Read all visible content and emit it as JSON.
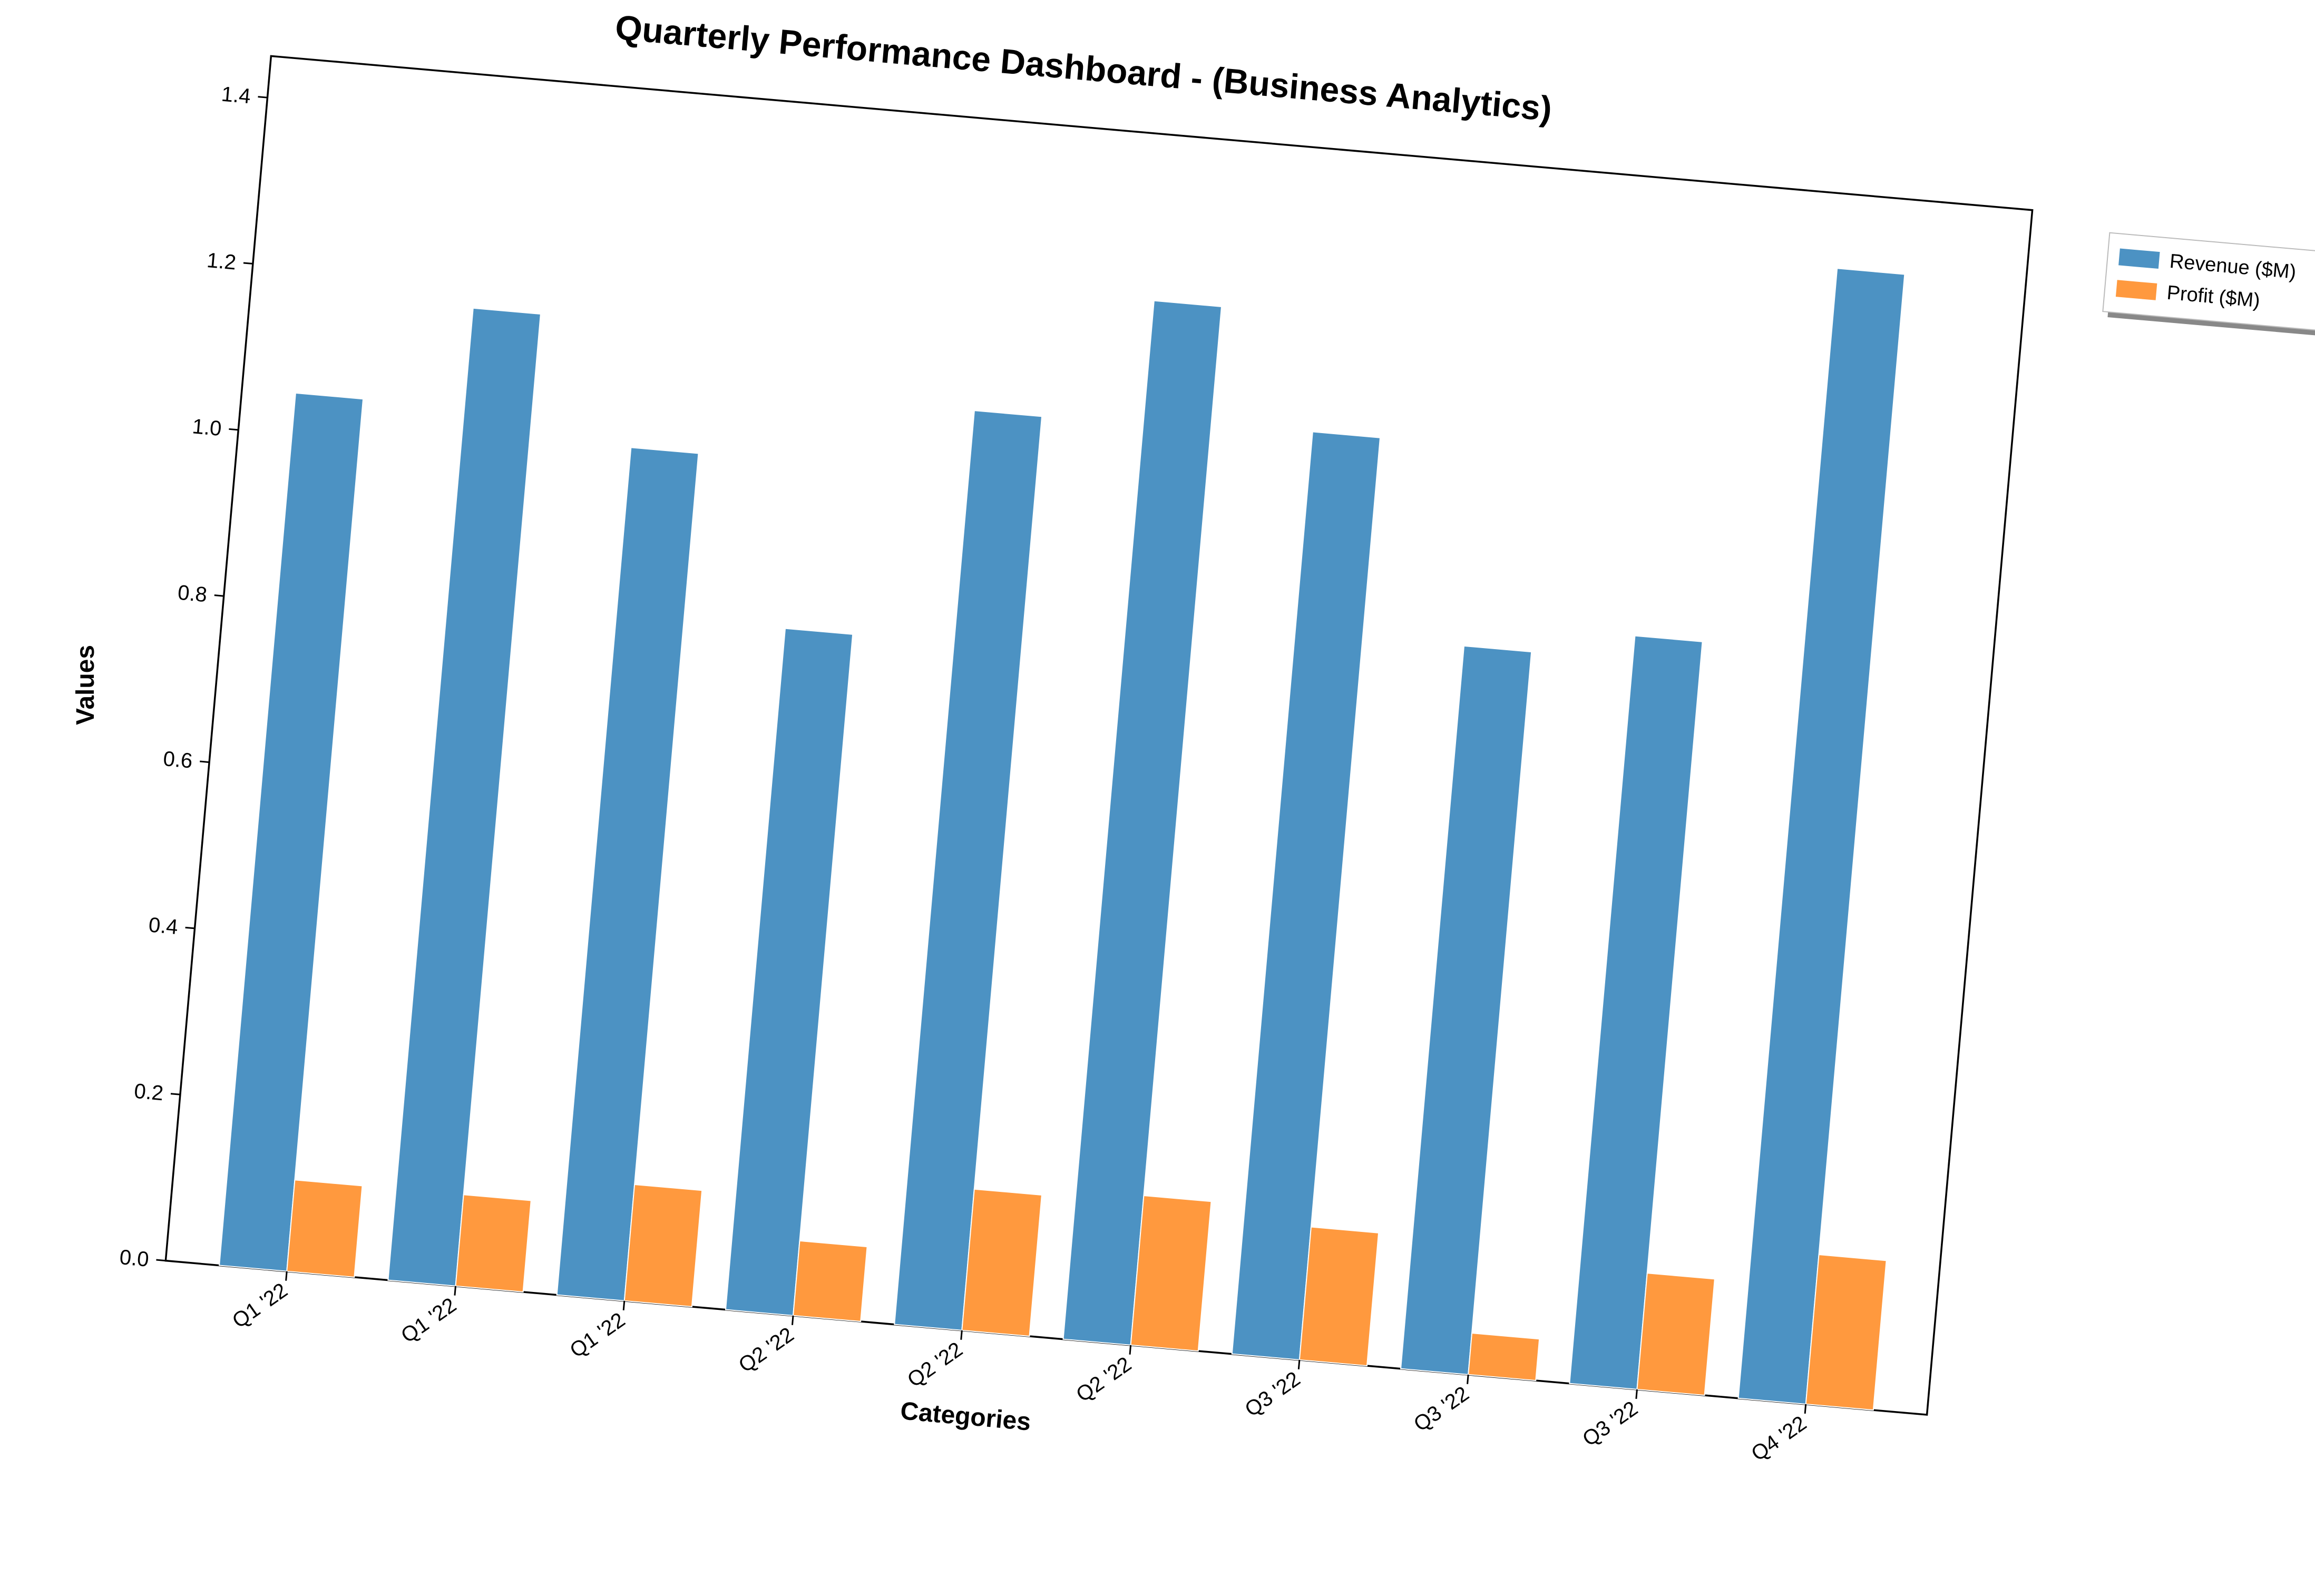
{
  "chart_data": {
    "type": "bar",
    "title": "Quarterly Performance Dashboard - (Business Analytics)",
    "xlabel": "Categories",
    "ylabel": "Values",
    "categories": [
      "Q1 '22",
      "Q1 '22",
      "Q1 '22",
      "Q2 '22",
      "Q2 '22",
      "Q2 '22",
      "Q3 '22",
      "Q3 '22",
      "Q3 '22",
      "Q4 '22"
    ],
    "series": [
      {
        "name": "Revenue ($M)",
        "color": "#4c92c3",
        "values": [
          1.05,
          1.17,
          1.02,
          0.82,
          1.1,
          1.25,
          1.11,
          0.87,
          0.9,
          1.36
        ]
      },
      {
        "name": "Profit ($M)",
        "color": "#ff993e",
        "values": [
          0.11,
          0.11,
          0.14,
          0.09,
          0.17,
          0.18,
          0.16,
          0.05,
          0.14,
          0.18
        ]
      }
    ],
    "ylim": [
      0,
      1.45
    ],
    "yticks": [
      0.0,
      0.2,
      0.4,
      0.6,
      0.8,
      1.0,
      1.2,
      1.4
    ],
    "ytick_labels": [
      "0.0",
      "0.2",
      "0.4",
      "0.6",
      "0.8",
      "1.0",
      "1.2",
      "1.4"
    ],
    "grid": false,
    "legend_position": "upper-right-outside",
    "rotation_deg": -5
  }
}
